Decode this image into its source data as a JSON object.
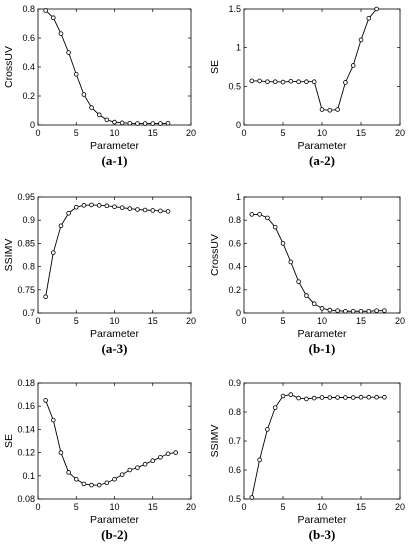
{
  "chart_data": [
    {
      "type": "line",
      "panel_label": "(a-1)",
      "xlabel": "Parameter",
      "ylabel": "CrossUV",
      "xlim": [
        0,
        20
      ],
      "ylim": [
        0,
        0.8
      ],
      "xticks": [
        0,
        5,
        10,
        15,
        20
      ],
      "yticks": [
        0,
        0.2,
        0.4,
        0.6,
        0.8
      ],
      "x": [
        1,
        2,
        3,
        4,
        5,
        6,
        7,
        8,
        9,
        10,
        11,
        12,
        13,
        14,
        15,
        16,
        17
      ],
      "y": [
        0.79,
        0.74,
        0.63,
        0.5,
        0.35,
        0.21,
        0.12,
        0.07,
        0.035,
        0.02,
        0.015,
        0.012,
        0.01,
        0.01,
        0.01,
        0.01,
        0.012
      ]
    },
    {
      "type": "line",
      "panel_label": "(a-2)",
      "xlabel": "Parameter",
      "ylabel": "SE",
      "xlim": [
        0,
        20
      ],
      "ylim": [
        0,
        1.5
      ],
      "xticks": [
        0,
        5,
        10,
        15,
        20
      ],
      "yticks": [
        0,
        0.5,
        1,
        1.5
      ],
      "x": [
        1,
        2,
        3,
        4,
        5,
        6,
        7,
        8,
        9,
        10,
        11,
        12,
        13,
        14,
        15,
        16,
        17
      ],
      "y": [
        0.57,
        0.57,
        0.56,
        0.56,
        0.555,
        0.565,
        0.56,
        0.56,
        0.56,
        0.2,
        0.19,
        0.2,
        0.55,
        0.77,
        1.1,
        1.38,
        1.5
      ]
    },
    {
      "type": "line",
      "panel_label": "(a-3)",
      "xlabel": "Parameter",
      "ylabel": "SSIMV",
      "xlim": [
        0,
        20
      ],
      "ylim": [
        0.7,
        0.95
      ],
      "xticks": [
        0,
        5,
        10,
        15,
        20
      ],
      "yticks": [
        0.7,
        0.75,
        0.8,
        0.85,
        0.9,
        0.95
      ],
      "x": [
        1,
        2,
        3,
        4,
        5,
        6,
        7,
        8,
        9,
        10,
        11,
        12,
        13,
        14,
        15,
        16,
        17
      ],
      "y": [
        0.735,
        0.83,
        0.888,
        0.915,
        0.928,
        0.932,
        0.933,
        0.932,
        0.931,
        0.929,
        0.927,
        0.925,
        0.923,
        0.922,
        0.921,
        0.92,
        0.919
      ]
    },
    {
      "type": "line",
      "panel_label": "(b-1)",
      "xlabel": "Parameter",
      "ylabel": "CrossUV",
      "xlim": [
        0,
        20
      ],
      "ylim": [
        0,
        1
      ],
      "xticks": [
        0,
        5,
        10,
        15,
        20
      ],
      "yticks": [
        0,
        0.2,
        0.4,
        0.6,
        0.8,
        1
      ],
      "x": [
        1,
        2,
        3,
        4,
        5,
        6,
        7,
        8,
        9,
        10,
        11,
        12,
        13,
        14,
        15,
        16,
        17,
        18
      ],
      "y": [
        0.85,
        0.85,
        0.82,
        0.74,
        0.6,
        0.44,
        0.27,
        0.15,
        0.08,
        0.04,
        0.025,
        0.02,
        0.015,
        0.015,
        0.015,
        0.015,
        0.02,
        0.02
      ]
    },
    {
      "type": "line",
      "panel_label": "(b-2)",
      "xlabel": "Parameter",
      "ylabel": "SE",
      "xlim": [
        0,
        20
      ],
      "ylim": [
        0.08,
        0.18
      ],
      "xticks": [
        0,
        5,
        10,
        15,
        20
      ],
      "yticks": [
        0.08,
        0.1,
        0.12,
        0.14,
        0.16,
        0.18
      ],
      "x": [
        1,
        2,
        3,
        4,
        5,
        6,
        7,
        8,
        9,
        10,
        11,
        12,
        13,
        14,
        15,
        16,
        17,
        18
      ],
      "y": [
        0.165,
        0.148,
        0.12,
        0.103,
        0.097,
        0.093,
        0.092,
        0.092,
        0.094,
        0.097,
        0.101,
        0.105,
        0.107,
        0.11,
        0.113,
        0.116,
        0.119,
        0.12
      ]
    },
    {
      "type": "line",
      "panel_label": "(b-3)",
      "xlabel": "Parameter",
      "ylabel": "SSIMV",
      "xlim": [
        0,
        20
      ],
      "ylim": [
        0.5,
        0.9
      ],
      "xticks": [
        0,
        5,
        10,
        15,
        20
      ],
      "yticks": [
        0.5,
        0.6,
        0.7,
        0.8,
        0.9
      ],
      "x": [
        1,
        2,
        3,
        4,
        5,
        6,
        7,
        8,
        9,
        10,
        11,
        12,
        13,
        14,
        15,
        16,
        17,
        18
      ],
      "y": [
        0.505,
        0.635,
        0.74,
        0.815,
        0.855,
        0.86,
        0.848,
        0.845,
        0.848,
        0.85,
        0.85,
        0.85,
        0.85,
        0.85,
        0.851,
        0.851,
        0.851,
        0.851
      ]
    }
  ]
}
